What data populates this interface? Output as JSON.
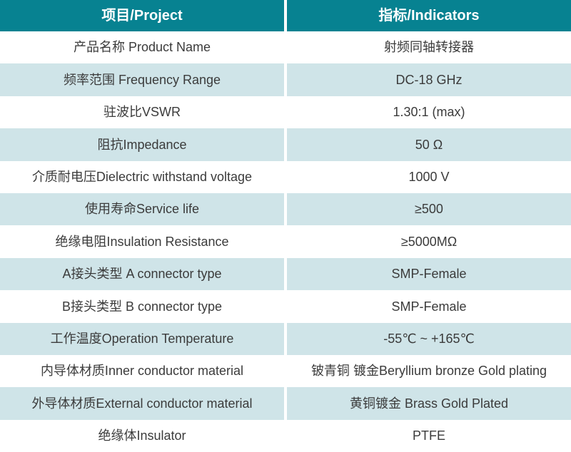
{
  "table": {
    "header": {
      "project": "项目/Project",
      "indicators": "指标/Indicators"
    },
    "rows": [
      {
        "project": "产品名称 Product Name",
        "indicator": "射频同轴转接器"
      },
      {
        "project": "频率范围 Frequency Range",
        "indicator": "DC-18 GHz"
      },
      {
        "project": "驻波比VSWR",
        "indicator": "1.30:1 (max)"
      },
      {
        "project": "阻抗Impedance",
        "indicator": "50 Ω"
      },
      {
        "project": "介质耐电压Dielectric withstand voltage",
        "indicator": "1000 V"
      },
      {
        "project": "使用寿命Service life",
        "indicator": "≥500"
      },
      {
        "project": "绝缘电阻Insulation Resistance",
        "indicator": "≥5000MΩ"
      },
      {
        "project": "A接头类型 A connector type",
        "indicator": "SMP-Female"
      },
      {
        "project": "B接头类型 B connector type",
        "indicator": "SMP-Female"
      },
      {
        "project": "工作温度Operation Temperature",
        "indicator": "-55℃ ~ +165℃"
      },
      {
        "project": "内导体材质Inner conductor material",
        "indicator": "铍青铜 镀金Beryllium bronze Gold plating"
      },
      {
        "project": "外导体材质External conductor material",
        "indicator": "黄铜镀金 Brass Gold Plated"
      },
      {
        "project": "绝缘体Insulator",
        "indicator": "PTFE"
      }
    ]
  },
  "colors": {
    "header_bg": "#078291",
    "header_text": "#ffffff",
    "alt_row_bg": "#cfe4e8",
    "text": "#3b3b3b",
    "divider": "#ffffff"
  }
}
